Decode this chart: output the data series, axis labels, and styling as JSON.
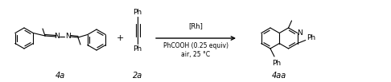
{
  "bg_color": "#ffffff",
  "fig_width": 4.86,
  "fig_height": 1.03,
  "dpi": 100,
  "label_4a": "4a",
  "label_2a": "2a",
  "label_4aa": "4aa",
  "plus_symbol": "+",
  "arrow_label_top": "[Rh]",
  "arrow_label_bottom1": "PhCOOH (0.25 equiv)",
  "arrow_label_bottom2": "air, 25 °C",
  "ph_top": "Ph",
  "ph_bottom": "Ph",
  "ph_right": "Ph",
  "ph_right2": "Ph",
  "N_label": "N",
  "line_color": "#000000",
  "lw": 0.8
}
